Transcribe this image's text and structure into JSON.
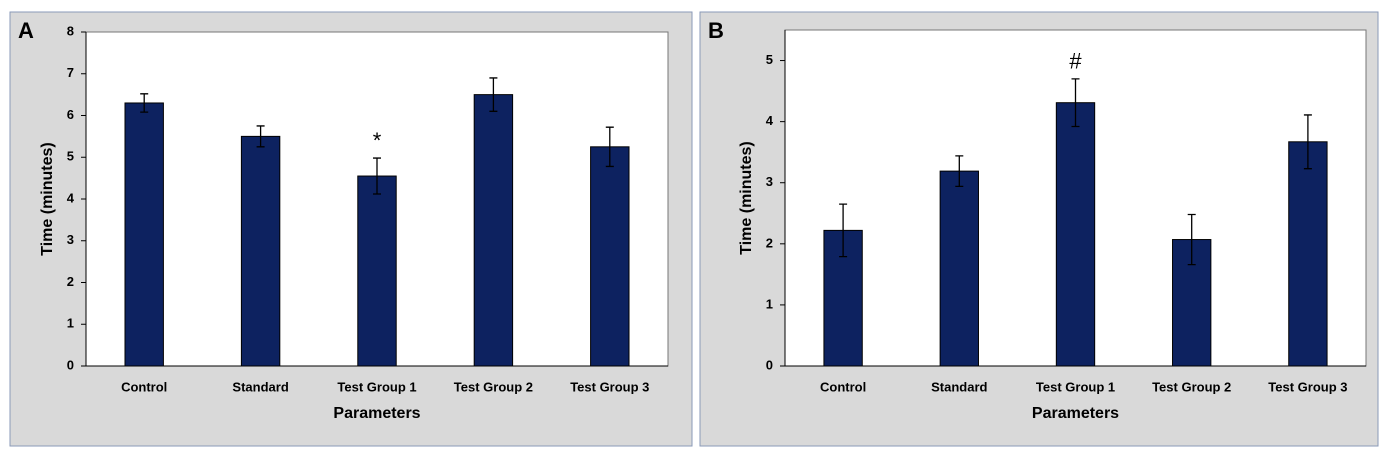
{
  "chart_data": [
    {
      "type": "bar",
      "panel": "A",
      "xlabel": "Parameters",
      "ylabel": "Time (minutes)",
      "categories": [
        "Control",
        "Standard",
        "Test Group 1",
        "Test Group 2",
        "Test Group 3"
      ],
      "values": [
        6.3,
        5.5,
        4.55,
        6.5,
        5.25
      ],
      "errors": [
        0.22,
        0.25,
        0.43,
        0.4,
        0.47
      ],
      "color": "#0d2260",
      "ylim": [
        0,
        8
      ],
      "yticks": [
        0,
        1,
        2,
        3,
        4,
        5,
        6,
        7,
        8
      ],
      "annotations": [
        {
          "text": "*",
          "category": "Test Group 1"
        }
      ]
    },
    {
      "type": "bar",
      "panel": "B",
      "xlabel": "Parameters",
      "ylabel": "Time (minutes)",
      "categories": [
        "Control",
        "Standard",
        "Test Group 1",
        "Test Group 2",
        "Test Group 3"
      ],
      "values": [
        2.22,
        3.19,
        4.31,
        2.07,
        3.67
      ],
      "errors": [
        0.43,
        0.25,
        0.39,
        0.41,
        0.44
      ],
      "color": "#0d2260",
      "ylim": [
        0,
        5.5
      ],
      "yticks": [
        0,
        1,
        2,
        3,
        4,
        5
      ],
      "annotations": [
        {
          "text": "#",
          "category": "Test Group 1"
        }
      ]
    }
  ]
}
